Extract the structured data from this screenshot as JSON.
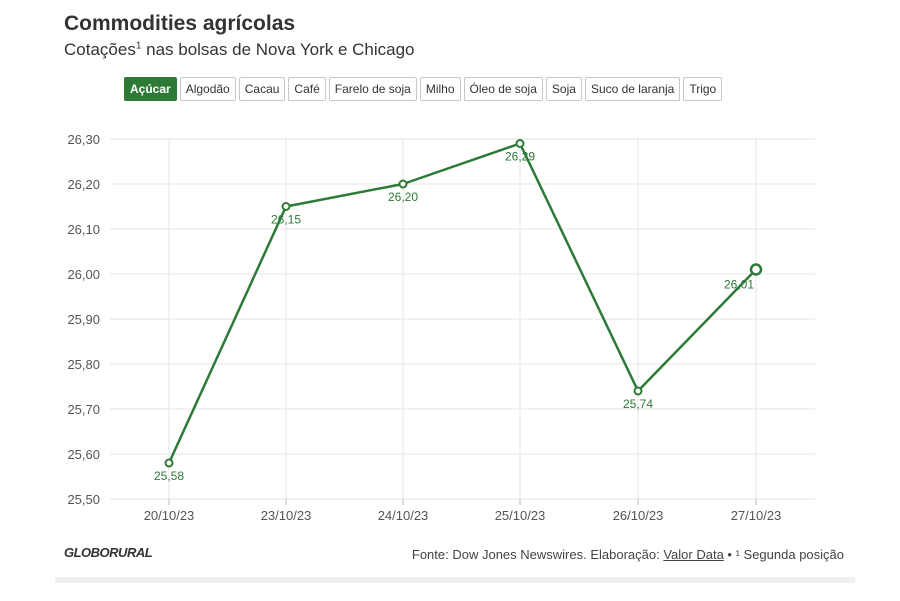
{
  "header": {
    "title": "Commodities agrícolas",
    "subtitle_main": "Cotações",
    "subtitle_sup": "1",
    "subtitle_rest": " nas bolsas de Nova York e Chicago"
  },
  "tabs": [
    {
      "label": "Açúcar",
      "active": true
    },
    {
      "label": "Algodão",
      "active": false
    },
    {
      "label": "Cacau",
      "active": false
    },
    {
      "label": "Café",
      "active": false
    },
    {
      "label": "Farelo de soja",
      "active": false
    },
    {
      "label": "Milho",
      "active": false
    },
    {
      "label": "Óleo de soja",
      "active": false
    },
    {
      "label": "Soja",
      "active": false
    },
    {
      "label": "Suco de laranja",
      "active": false
    },
    {
      "label": "Trigo",
      "active": false
    }
  ],
  "footer": {
    "logo": "GLOBORURAL",
    "source_prefix": "Fonte: Dow Jones Newswires. Elaboração: ",
    "source_link": "Valor Data",
    "source_suffix": " • ¹ Segunda posição"
  },
  "colors": {
    "accent": "#2d7a37",
    "grid": "#e6e6e6",
    "axis_text": "#555555"
  },
  "chart_data": {
    "type": "line",
    "categories": [
      "20/10/23",
      "23/10/23",
      "24/10/23",
      "25/10/23",
      "26/10/23",
      "27/10/23"
    ],
    "series": [
      {
        "values": [
          25.58,
          26.15,
          26.2,
          26.29,
          25.74,
          26.01
        ]
      }
    ],
    "data_labels": [
      "25,58",
      "26,15",
      "26,20",
      "26,29",
      "25,74",
      "26,01"
    ],
    "y_ticks": [
      "25,50",
      "25,60",
      "25,70",
      "25,80",
      "25,90",
      "26,00",
      "26,10",
      "26,20",
      "26,30"
    ],
    "ylim": [
      25.5,
      26.3
    ],
    "grid": true,
    "legend": "none"
  }
}
